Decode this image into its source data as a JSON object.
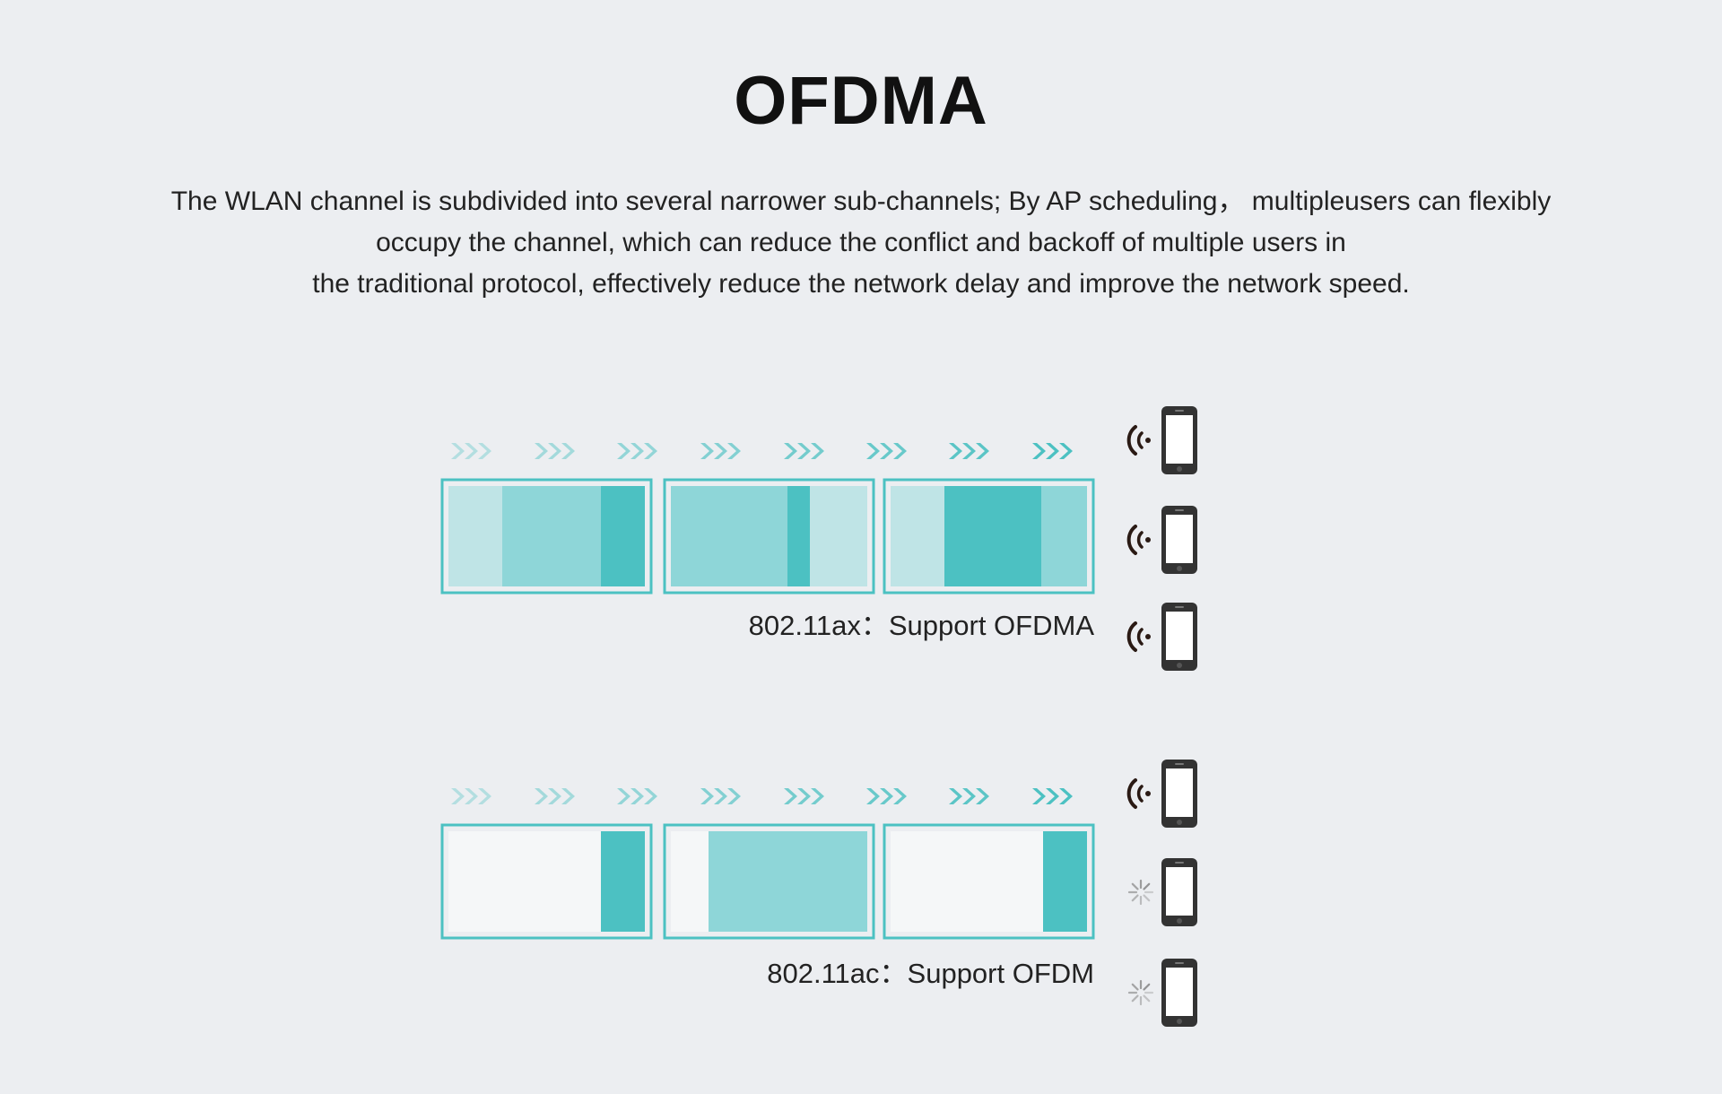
{
  "title": "OFDMA",
  "description": {
    "line1": "The WLAN channel is subdivided into several narrower sub-channels; By AP scheduling， multipleusers can flexibly",
    "line2": "occupy the channel, which can reduce the conflict and backoff of multiple users in",
    "line3": "the traditional protocol, effectively reduce the network delay and improve the network speed."
  },
  "colors": {
    "background": "#eceef1",
    "teal_border": "#4cc1c2",
    "teal_dark": "#4cc1c2",
    "teal_mid": "#8ed6d8",
    "teal_light": "#bfe4e6",
    "phone": "#333333",
    "signal": "#2a1a14",
    "idle": "#8c8c8c"
  },
  "panels": [
    {
      "id": "ax",
      "caption": "802.11ax：Support OFDMA",
      "device_states": [
        "transmitting",
        "transmitting",
        "transmitting"
      ]
    },
    {
      "id": "ac",
      "caption": "802.11ac：Support OFDM",
      "device_states": [
        "transmitting",
        "idle",
        "idle"
      ]
    }
  ],
  "icons": {
    "arrow": "triple-chevron-right-icon",
    "device": "smartphone-icon",
    "active": "wifi-signal-icon",
    "idle": "loading-spinner-icon"
  }
}
